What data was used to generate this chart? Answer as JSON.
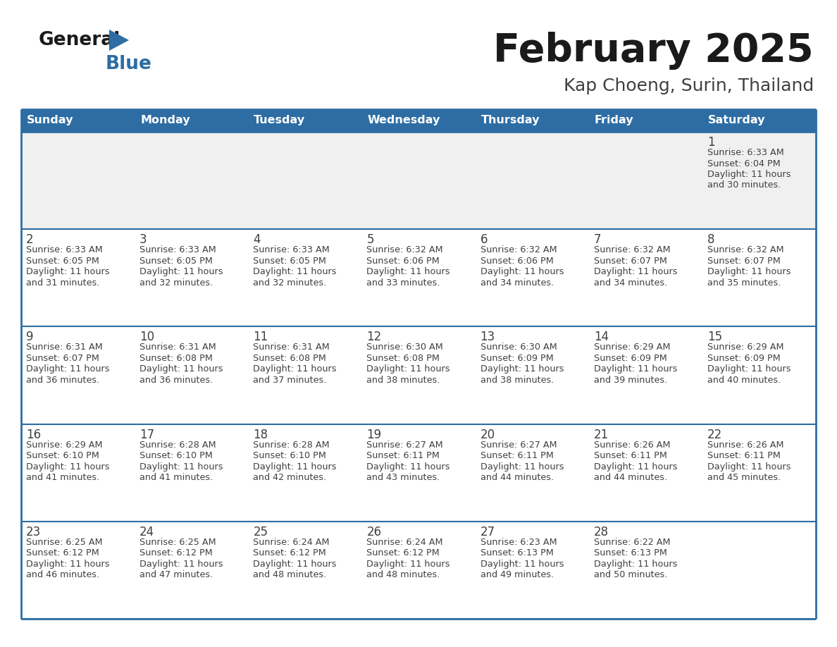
{
  "title": "February 2025",
  "subtitle": "Kap Choeng, Surin, Thailand",
  "days_of_week": [
    "Sunday",
    "Monday",
    "Tuesday",
    "Wednesday",
    "Thursday",
    "Friday",
    "Saturday"
  ],
  "header_bg_color": "#2e6da4",
  "header_text_color": "#ffffff",
  "row0_bg": "#f0f0f0",
  "cell_bg_color": "#ffffff",
  "day_number_color": "#404040",
  "info_text_color": "#404040",
  "border_color": "#2e6da4",
  "logo_general_color": "#1a1a1a",
  "logo_blue_color": "#2e6da4",
  "calendar_data": [
    {
      "day": 1,
      "col": 6,
      "row": 0,
      "sunrise": "6:33 AM",
      "sunset": "6:04 PM",
      "daylight": "11 hours and 30 minutes"
    },
    {
      "day": 2,
      "col": 0,
      "row": 1,
      "sunrise": "6:33 AM",
      "sunset": "6:05 PM",
      "daylight": "11 hours and 31 minutes"
    },
    {
      "day": 3,
      "col": 1,
      "row": 1,
      "sunrise": "6:33 AM",
      "sunset": "6:05 PM",
      "daylight": "11 hours and 32 minutes"
    },
    {
      "day": 4,
      "col": 2,
      "row": 1,
      "sunrise": "6:33 AM",
      "sunset": "6:05 PM",
      "daylight": "11 hours and 32 minutes"
    },
    {
      "day": 5,
      "col": 3,
      "row": 1,
      "sunrise": "6:32 AM",
      "sunset": "6:06 PM",
      "daylight": "11 hours and 33 minutes"
    },
    {
      "day": 6,
      "col": 4,
      "row": 1,
      "sunrise": "6:32 AM",
      "sunset": "6:06 PM",
      "daylight": "11 hours and 34 minutes"
    },
    {
      "day": 7,
      "col": 5,
      "row": 1,
      "sunrise": "6:32 AM",
      "sunset": "6:07 PM",
      "daylight": "11 hours and 34 minutes"
    },
    {
      "day": 8,
      "col": 6,
      "row": 1,
      "sunrise": "6:32 AM",
      "sunset": "6:07 PM",
      "daylight": "11 hours and 35 minutes"
    },
    {
      "day": 9,
      "col": 0,
      "row": 2,
      "sunrise": "6:31 AM",
      "sunset": "6:07 PM",
      "daylight": "11 hours and 36 minutes"
    },
    {
      "day": 10,
      "col": 1,
      "row": 2,
      "sunrise": "6:31 AM",
      "sunset": "6:08 PM",
      "daylight": "11 hours and 36 minutes"
    },
    {
      "day": 11,
      "col": 2,
      "row": 2,
      "sunrise": "6:31 AM",
      "sunset": "6:08 PM",
      "daylight": "11 hours and 37 minutes"
    },
    {
      "day": 12,
      "col": 3,
      "row": 2,
      "sunrise": "6:30 AM",
      "sunset": "6:08 PM",
      "daylight": "11 hours and 38 minutes"
    },
    {
      "day": 13,
      "col": 4,
      "row": 2,
      "sunrise": "6:30 AM",
      "sunset": "6:09 PM",
      "daylight": "11 hours and 38 minutes"
    },
    {
      "day": 14,
      "col": 5,
      "row": 2,
      "sunrise": "6:29 AM",
      "sunset": "6:09 PM",
      "daylight": "11 hours and 39 minutes"
    },
    {
      "day": 15,
      "col": 6,
      "row": 2,
      "sunrise": "6:29 AM",
      "sunset": "6:09 PM",
      "daylight": "11 hours and 40 minutes"
    },
    {
      "day": 16,
      "col": 0,
      "row": 3,
      "sunrise": "6:29 AM",
      "sunset": "6:10 PM",
      "daylight": "11 hours and 41 minutes"
    },
    {
      "day": 17,
      "col": 1,
      "row": 3,
      "sunrise": "6:28 AM",
      "sunset": "6:10 PM",
      "daylight": "11 hours and 41 minutes"
    },
    {
      "day": 18,
      "col": 2,
      "row": 3,
      "sunrise": "6:28 AM",
      "sunset": "6:10 PM",
      "daylight": "11 hours and 42 minutes"
    },
    {
      "day": 19,
      "col": 3,
      "row": 3,
      "sunrise": "6:27 AM",
      "sunset": "6:11 PM",
      "daylight": "11 hours and 43 minutes"
    },
    {
      "day": 20,
      "col": 4,
      "row": 3,
      "sunrise": "6:27 AM",
      "sunset": "6:11 PM",
      "daylight": "11 hours and 44 minutes"
    },
    {
      "day": 21,
      "col": 5,
      "row": 3,
      "sunrise": "6:26 AM",
      "sunset": "6:11 PM",
      "daylight": "11 hours and 44 minutes"
    },
    {
      "day": 22,
      "col": 6,
      "row": 3,
      "sunrise": "6:26 AM",
      "sunset": "6:11 PM",
      "daylight": "11 hours and 45 minutes"
    },
    {
      "day": 23,
      "col": 0,
      "row": 4,
      "sunrise": "6:25 AM",
      "sunset": "6:12 PM",
      "daylight": "11 hours and 46 minutes"
    },
    {
      "day": 24,
      "col": 1,
      "row": 4,
      "sunrise": "6:25 AM",
      "sunset": "6:12 PM",
      "daylight": "11 hours and 47 minutes"
    },
    {
      "day": 25,
      "col": 2,
      "row": 4,
      "sunrise": "6:24 AM",
      "sunset": "6:12 PM",
      "daylight": "11 hours and 48 minutes"
    },
    {
      "day": 26,
      "col": 3,
      "row": 4,
      "sunrise": "6:24 AM",
      "sunset": "6:12 PM",
      "daylight": "11 hours and 48 minutes"
    },
    {
      "day": 27,
      "col": 4,
      "row": 4,
      "sunrise": "6:23 AM",
      "sunset": "6:13 PM",
      "daylight": "11 hours and 49 minutes"
    },
    {
      "day": 28,
      "col": 5,
      "row": 4,
      "sunrise": "6:22 AM",
      "sunset": "6:13 PM",
      "daylight": "11 hours and 50 minutes"
    }
  ],
  "num_rows": 5,
  "num_cols": 7,
  "fig_width": 11.88,
  "fig_height": 9.18,
  "dpi": 100
}
